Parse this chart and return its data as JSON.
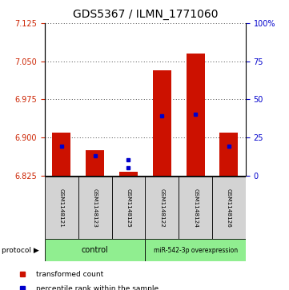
{
  "title": "GDS5367 / ILMN_1771060",
  "samples": [
    "GSM1148121",
    "GSM1148123",
    "GSM1148125",
    "GSM1148122",
    "GSM1148124",
    "GSM1148126"
  ],
  "red_bar_bottom": 6.825,
  "red_bar_tops": [
    6.91,
    6.875,
    6.833,
    7.032,
    7.065,
    6.91
  ],
  "blue_marker_values": [
    6.883,
    6.863,
    6.856,
    6.943,
    6.945,
    6.882
  ],
  "blue_marker_extra_val": 6.84,
  "blue_marker_extra_idx": 2,
  "ylim": [
    6.825,
    7.125
  ],
  "yticks": [
    6.825,
    6.9,
    6.975,
    7.05,
    7.125
  ],
  "right_yticks": [
    0,
    25,
    50,
    75,
    100
  ],
  "right_ylim": [
    0,
    100
  ],
  "bar_color": "#CC1100",
  "blue_color": "#0000CC",
  "grid_color": "#000000",
  "title_fontsize": 10,
  "tick_fontsize": 7,
  "tick_label_color_left": "#CC2200",
  "tick_label_color_right": "#0000CC",
  "background_plot": "#FFFFFF",
  "background_label": "#D3D3D3",
  "group_color": "#90EE90",
  "control_label": "control",
  "mir_label": "miR-542-3p overexpression",
  "protocol_text": "protocol",
  "legend_label1": "transformed count",
  "legend_label2": "percentile rank within the sample"
}
